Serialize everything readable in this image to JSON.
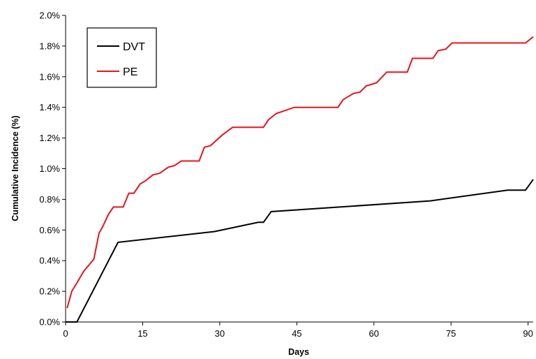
{
  "chart_data": {
    "type": "line",
    "title": "",
    "xlabel": "Days",
    "ylabel": "Cumulative Incidence (%)",
    "xlim": [
      0,
      91
    ],
    "ylim": [
      0,
      2.0
    ],
    "x_ticks": [
      0,
      15,
      30,
      45,
      60,
      75,
      90
    ],
    "x_tick_labels": [
      "0",
      "15",
      "30",
      "45",
      "60",
      "75",
      "90"
    ],
    "y_ticks": [
      0,
      0.2,
      0.4,
      0.6,
      0.8,
      1.0,
      1.2,
      1.4,
      1.6,
      1.8,
      2.0
    ],
    "y_tick_labels": [
      "0.0%",
      "0.2%",
      "0.4%",
      "0.6%",
      "0.8%",
      "1.0%",
      "1.2%",
      "1.4%",
      "1.6%",
      "1.8%",
      "2.0%"
    ],
    "grid": false,
    "legend_position": "top-left",
    "series": [
      {
        "name": "DVT",
        "color": "#000000",
        "x": [
          0,
          2.2,
          10.2,
          29,
          37.5,
          38.5,
          40,
          71,
          86,
          89.5,
          91
        ],
        "y": [
          0,
          0,
          0.52,
          0.59,
          0.65,
          0.65,
          0.72,
          0.79,
          0.86,
          0.86,
          0.93
        ]
      },
      {
        "name": "PE",
        "color": "#e8141b",
        "x": [
          0.3,
          1.2,
          2.3,
          3.5,
          5.5,
          6.5,
          7.2,
          8.3,
          9.3,
          11.2,
          12.3,
          13.3,
          14.5,
          15.5,
          17.0,
          18.3,
          20.0,
          21.2,
          22.5,
          26.0,
          27.0,
          28.2,
          30.5,
          32.5,
          38.5,
          39.5,
          41.0,
          44.5,
          53.0,
          54.0,
          56.0,
          57.3,
          58.5,
          60.5,
          62.5,
          66.5,
          67.5,
          71.5,
          72.5,
          74.0,
          75.2,
          89.5,
          91.0
        ],
        "y": [
          0.09,
          0.2,
          0.26,
          0.33,
          0.41,
          0.58,
          0.62,
          0.7,
          0.75,
          0.75,
          0.84,
          0.84,
          0.9,
          0.92,
          0.96,
          0.97,
          1.01,
          1.02,
          1.05,
          1.05,
          1.14,
          1.15,
          1.22,
          1.27,
          1.27,
          1.32,
          1.36,
          1.4,
          1.4,
          1.45,
          1.49,
          1.5,
          1.54,
          1.56,
          1.63,
          1.63,
          1.72,
          1.72,
          1.77,
          1.78,
          1.82,
          1.82,
          1.86
        ]
      }
    ]
  }
}
